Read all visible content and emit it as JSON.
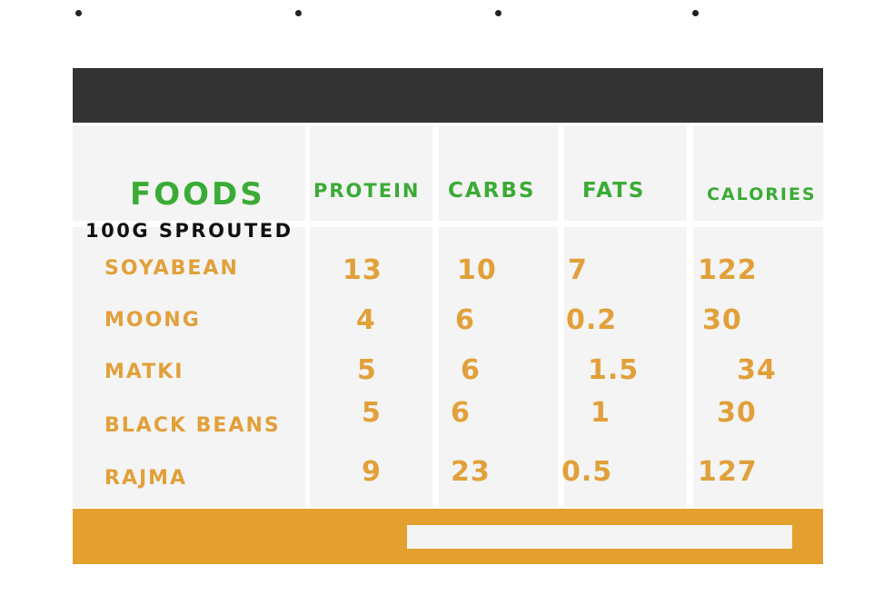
{
  "colors": {
    "header_green": "#3aab35",
    "value_orange": "#e2a03a",
    "top_bar": "#333333",
    "bottom_bar": "#e4a02f",
    "cell_bg": "#f3f4f3"
  },
  "table": {
    "headers": [
      "FOODS",
      "PROTEIN",
      "CARBS",
      "FATS",
      "CALORIES"
    ],
    "subtitle": "100G SPROUTED",
    "rows": [
      {
        "food": "SOYABEAN",
        "protein": "13",
        "carbs": "10",
        "fats": "7",
        "calories": "122"
      },
      {
        "food": "MOONG",
        "protein": "4",
        "carbs": "6",
        "fats": "0.2",
        "calories": "30"
      },
      {
        "food": "MATKI",
        "protein": "5",
        "carbs": "6",
        "fats": "1.5",
        "calories": "34"
      },
      {
        "food": "BLACK BEANS",
        "protein": "5",
        "carbs": "6",
        "fats": "1",
        "calories": "30"
      },
      {
        "food": "RAJMA",
        "protein": "9",
        "carbs": "23",
        "fats": "0.5",
        "calories": "127"
      }
    ]
  }
}
